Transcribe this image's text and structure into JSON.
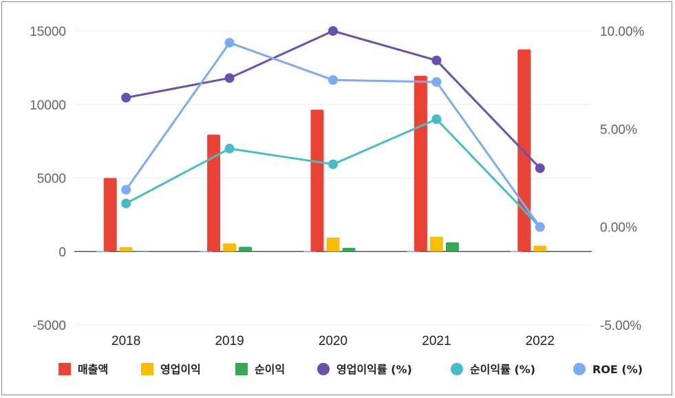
{
  "chart_data": {
    "type": "bar",
    "categories": [
      "2018",
      "2019",
      "2020",
      "2021",
      "2022"
    ],
    "left_axis": {
      "ylim": [
        -5000,
        15000
      ],
      "ticks": [
        "15000",
        "10000",
        "5000",
        "0",
        "-5000"
      ]
    },
    "right_axis": {
      "ylim": [
        -5,
        10
      ],
      "ticks": [
        "10.00%",
        "5.00%",
        "0.00%",
        "-5.00%"
      ]
    },
    "bar_series": [
      {
        "name": "매출액",
        "color": "#ea4335",
        "values": [
          5000,
          7950,
          9650,
          11950,
          13750
        ]
      },
      {
        "name": "영업이익",
        "color": "#fbbc04",
        "values": [
          300,
          550,
          950,
          1000,
          400
        ]
      },
      {
        "name": "순이익",
        "color": "#34a853",
        "values": [
          30,
          320,
          250,
          620,
          null
        ]
      }
    ],
    "line_series": [
      {
        "name": "영업이익률 (%)",
        "color": "#6a4fb0",
        "values": [
          6.6,
          7.6,
          10.0,
          8.5,
          3.0
        ]
      },
      {
        "name": "순이익률 (%)",
        "color": "#46bdc6",
        "values": [
          1.2,
          4.0,
          3.2,
          5.5,
          0.0
        ]
      },
      {
        "name": "ROE (%)",
        "color": "#7baaf7",
        "values": [
          1.9,
          9.4,
          7.5,
          7.4,
          0.0
        ]
      }
    ],
    "grid": true,
    "legend_position": "bottom"
  }
}
